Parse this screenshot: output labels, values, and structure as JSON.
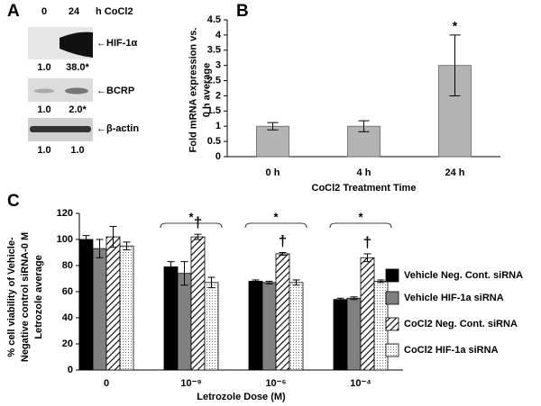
{
  "blot": {
    "label": "A",
    "lanes": [
      "0",
      "24"
    ],
    "unit": "h CoCl2",
    "rows": [
      {
        "name": "←HIF-1α",
        "values": [
          "1.0",
          "38.0*"
        ]
      },
      {
        "name": "←BCRP",
        "values": [
          "1.0",
          "2.0*"
        ]
      },
      {
        "name": "←β-actin",
        "values": [
          "1.0",
          "1.0"
        ]
      }
    ]
  },
  "chart_data": [
    {
      "type": "bar",
      "label": "B",
      "ylabel": [
        "Fold mRNA expression vs.",
        "0 h average"
      ],
      "xlabel": "CoCl2 Treatment Time",
      "categories": [
        "0 h",
        "4 h",
        "24 h"
      ],
      "series": [
        {
          "color": "#b3b3b3",
          "pattern": "solid",
          "values": [
            1,
            1,
            3
          ],
          "errors": [
            0.12,
            0.18,
            1.0
          ]
        }
      ],
      "annotations": [
        null,
        null,
        "*"
      ],
      "ylim": [
        0,
        4.5
      ],
      "yticks": [
        0,
        0.5,
        1,
        1.5,
        2,
        2.5,
        3,
        3.5,
        4,
        4.5
      ]
    },
    {
      "type": "bar",
      "label": "C",
      "ylabel": [
        "% cell viability of Vehicle-",
        "Negative control siRNA-0 M",
        "Letrozole average"
      ],
      "xlabel": "Letrozole Dose (M)",
      "categories": [
        "0",
        "10⁻⁹",
        "10⁻⁶",
        "10⁻⁴"
      ],
      "series": [
        {
          "name": "Vehicle Neg. Cont. siRNA",
          "color": "#000000",
          "pattern": "solid",
          "values": [
            100,
            79,
            68,
            54
          ],
          "errors": [
            3,
            4,
            1,
            1
          ]
        },
        {
          "name": "Vehicle HIF-1a siRNA",
          "color": "#808080",
          "pattern": "solid",
          "values": [
            93,
            74,
            67,
            55
          ],
          "errors": [
            7,
            9,
            1,
            1
          ]
        },
        {
          "name": "CoCl2 Neg. Cont. siRNA",
          "color": "#000000",
          "pattern": "hatch",
          "values": [
            102,
            102,
            89,
            86
          ],
          "errors": [
            8,
            2,
            1,
            3
          ]
        },
        {
          "name": "CoCl2 HIF-1a siRNA",
          "color": "#000000",
          "pattern": "dots",
          "values": [
            95,
            67,
            67,
            68
          ],
          "errors": [
            3,
            4,
            2,
            1
          ]
        }
      ],
      "significance": [
        null,
        "*",
        "*",
        "*"
      ],
      "daggers": [
        null,
        "†",
        "†",
        "†"
      ],
      "ylim": [
        0,
        120
      ],
      "yticks": [
        0,
        20,
        40,
        60,
        80,
        100,
        120
      ]
    }
  ]
}
